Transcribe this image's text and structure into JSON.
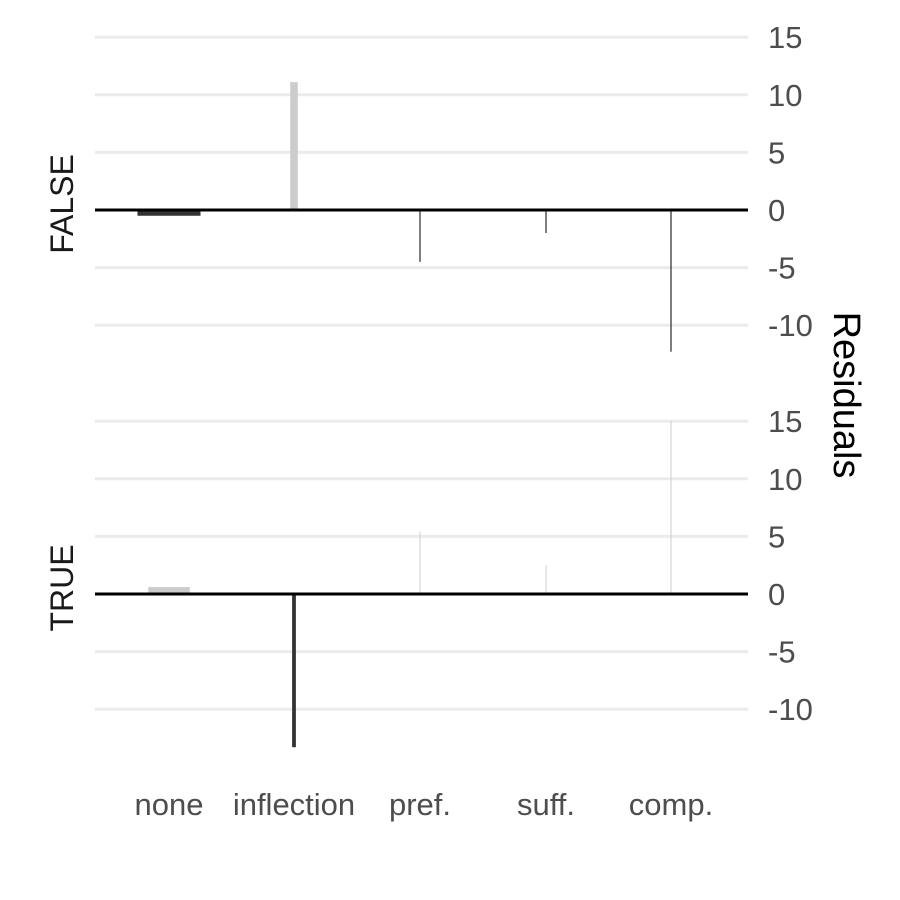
{
  "chart_data": {
    "type": "bar",
    "categories": [
      "none",
      "inflection",
      "pref.",
      "suff.",
      "comp."
    ],
    "ylabel": "Residuals",
    "ylim": [
      -13,
      16
    ],
    "yticks": [
      -10,
      -5,
      0,
      5,
      10,
      15
    ],
    "grid": true,
    "axis_position": "right",
    "colors": {
      "positive": "#cccccc",
      "negative": "#333333",
      "zero_line": "#000000",
      "grid": "#ebebeb"
    },
    "panels": [
      {
        "label": "FALSE",
        "series": [
          {
            "values": [
              -0.5,
              11.1,
              -4.5,
              -2.0,
              -12.3
            ],
            "widths": [
              0.5,
              0.06,
              0.01,
              0.01,
              0.01
            ]
          }
        ]
      },
      {
        "label": "TRUE",
        "series": [
          {
            "values": [
              0.6,
              -13.3,
              5.4,
              2.5,
              15.0
            ],
            "widths": [
              0.33,
              0.03,
              0.006,
              0.006,
              0.006
            ]
          }
        ]
      }
    ]
  }
}
